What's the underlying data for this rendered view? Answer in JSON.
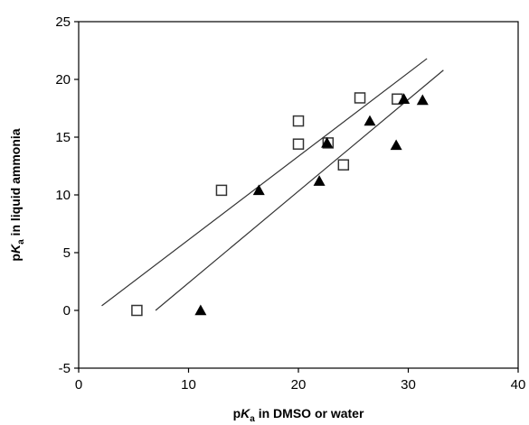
{
  "chart_data": {
    "type": "scatter",
    "title": "",
    "xlabel": {
      "pre": "p",
      "k": "K",
      "sub": "a",
      "post": " in DMSO or water"
    },
    "ylabel": {
      "pre": "p",
      "k": "K",
      "sub": "a",
      "post": " in liquid ammonia"
    },
    "xlim": [
      0,
      40
    ],
    "ylim": [
      -5,
      25
    ],
    "xticks": [
      "0",
      "10",
      "20",
      "30",
      "40"
    ],
    "yticks": [
      "-5",
      "0",
      "5",
      "10",
      "15",
      "20",
      "25"
    ],
    "grid": false,
    "legend": "none",
    "series": [
      {
        "marker": "square-open",
        "color": "#333333",
        "points": [
          [
            5.3,
            0.0
          ],
          [
            13.0,
            10.4
          ],
          [
            20.0,
            16.4
          ],
          [
            20.0,
            14.4
          ],
          [
            22.7,
            14.5
          ],
          [
            24.1,
            12.6
          ],
          [
            25.6,
            18.4
          ],
          [
            29.0,
            18.3
          ]
        ]
      },
      {
        "marker": "triangle-filled",
        "color": "#000000",
        "points": [
          [
            11.1,
            0.0
          ],
          [
            16.4,
            10.4
          ],
          [
            21.9,
            11.2
          ],
          [
            22.6,
            14.5
          ],
          [
            26.5,
            16.4
          ],
          [
            28.9,
            14.3
          ],
          [
            29.6,
            18.3
          ],
          [
            31.3,
            18.2
          ]
        ]
      }
    ],
    "lines": [
      {
        "color": "#333333",
        "from": [
          2.1,
          0.4
        ],
        "to": [
          31.7,
          21.8
        ]
      },
      {
        "color": "#333333",
        "from": [
          7.0,
          0.0
        ],
        "to": [
          33.2,
          20.8
        ]
      }
    ]
  }
}
